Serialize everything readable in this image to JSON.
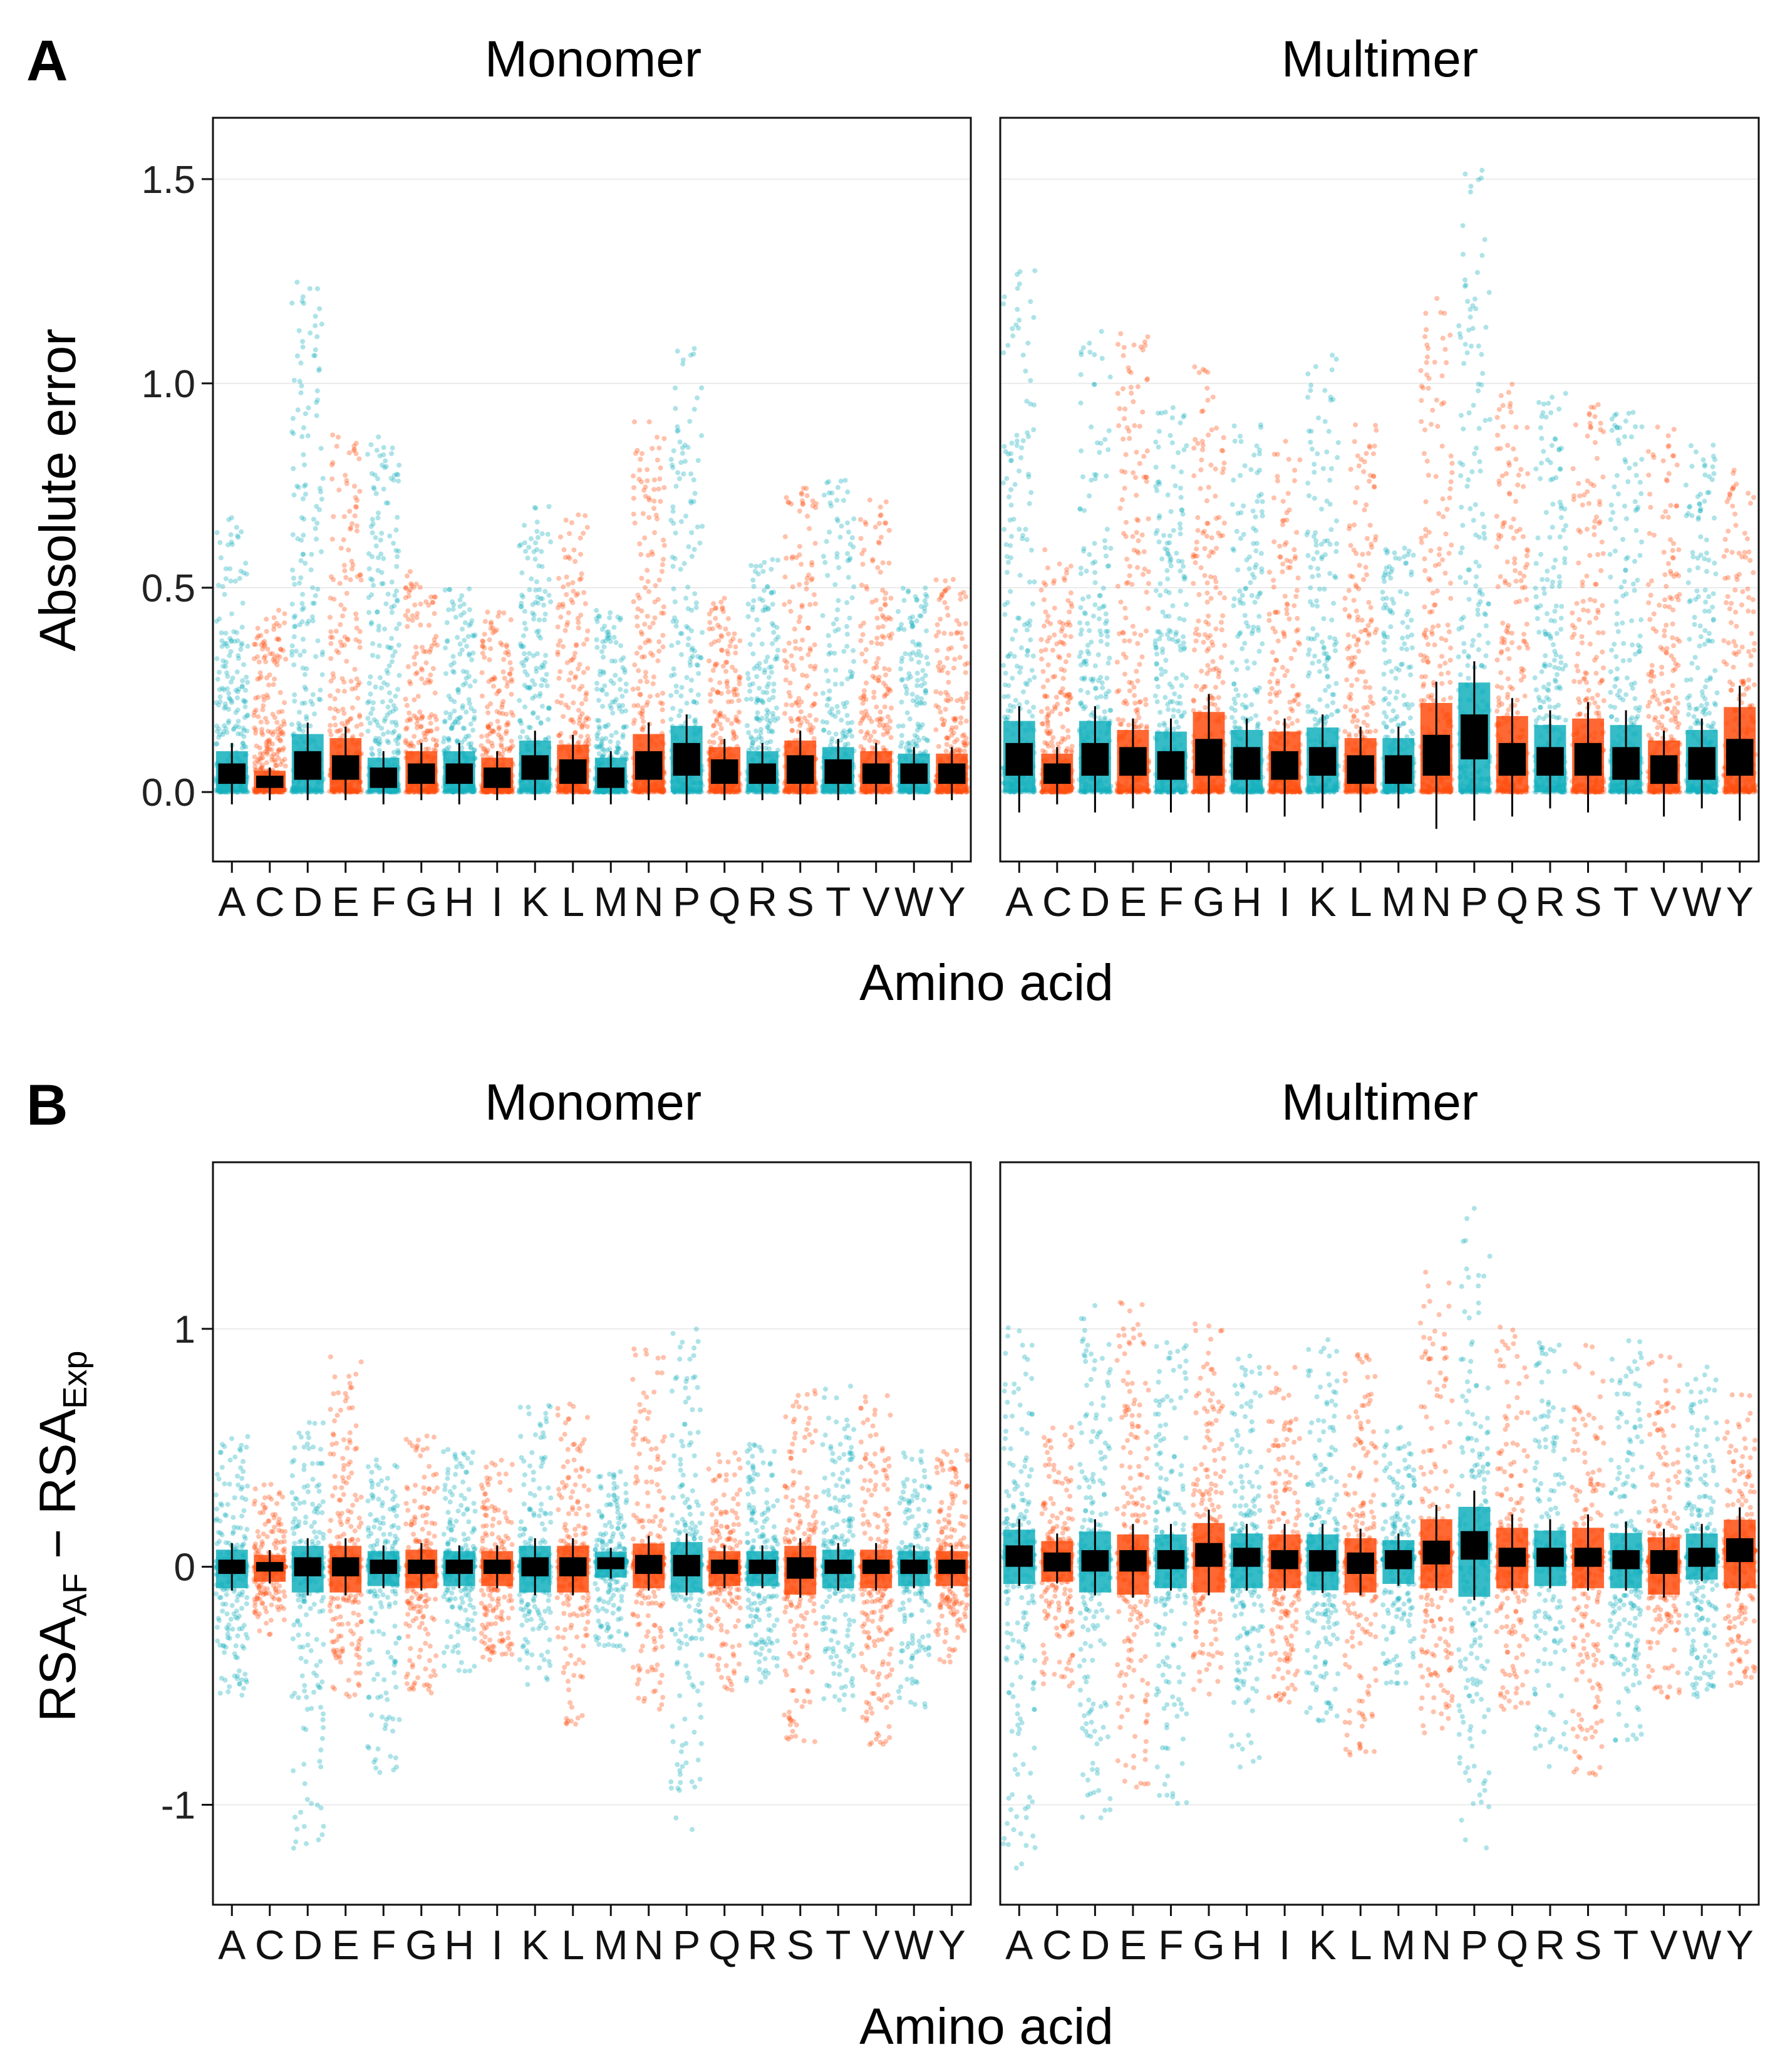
{
  "colors": {
    "teal": "#13B0BD",
    "orange": "#FF4E0E",
    "box": "#000000",
    "grid": "#EBEBEB",
    "frame": "#111111"
  },
  "chart_data": [
    {
      "panel_label": "A",
      "type": "box+jitter",
      "ylabel": "Absolute error",
      "xlabel": "Amino acid",
      "ylim": [
        -0.17,
        1.65
      ],
      "yticks": [
        0.0,
        0.5,
        1.0,
        1.5
      ],
      "ytick_labels": [
        "0.0",
        "0.5",
        "1.0",
        "1.5"
      ],
      "categories": [
        "A",
        "C",
        "D",
        "E",
        "F",
        "G",
        "H",
        "I",
        "K",
        "L",
        "M",
        "N",
        "P",
        "Q",
        "R",
        "S",
        "T",
        "V",
        "W",
        "Y"
      ],
      "category_colors": [
        "teal",
        "orange",
        "teal",
        "orange",
        "teal",
        "orange",
        "teal",
        "orange",
        "teal",
        "orange",
        "teal",
        "orange",
        "teal",
        "orange",
        "teal",
        "orange",
        "teal",
        "orange",
        "teal",
        "orange"
      ],
      "facets": [
        {
          "title": "Monomer",
          "median": [
            0.04,
            0.02,
            0.07,
            0.05,
            0.03,
            0.04,
            0.04,
            0.03,
            0.06,
            0.04,
            0.03,
            0.07,
            0.08,
            0.04,
            0.04,
            0.05,
            0.04,
            0.04,
            0.04,
            0.04
          ],
          "q1": [
            0.02,
            0.01,
            0.03,
            0.03,
            0.01,
            0.02,
            0.02,
            0.01,
            0.03,
            0.02,
            0.01,
            0.03,
            0.04,
            0.02,
            0.02,
            0.02,
            0.02,
            0.02,
            0.02,
            0.02
          ],
          "q3": [
            0.07,
            0.04,
            0.1,
            0.09,
            0.06,
            0.07,
            0.07,
            0.06,
            0.09,
            0.08,
            0.06,
            0.1,
            0.12,
            0.08,
            0.07,
            0.09,
            0.08,
            0.07,
            0.07,
            0.07
          ],
          "whisker_low": [
            -0.03,
            -0.02,
            -0.02,
            -0.02,
            -0.03,
            -0.02,
            -0.03,
            -0.02,
            -0.02,
            -0.03,
            -0.03,
            -0.02,
            -0.03,
            -0.02,
            -0.02,
            -0.03,
            -0.02,
            -0.03,
            -0.02,
            -0.02
          ],
          "whisker_high": [
            0.12,
            0.06,
            0.17,
            0.16,
            0.1,
            0.12,
            0.12,
            0.1,
            0.15,
            0.14,
            0.1,
            0.17,
            0.19,
            0.13,
            0.12,
            0.15,
            0.13,
            0.12,
            0.11,
            0.11
          ],
          "point_max": [
            0.68,
            0.45,
            1.25,
            0.9,
            0.88,
            0.54,
            0.5,
            0.45,
            0.7,
            0.7,
            0.45,
            0.93,
            1.12,
            0.48,
            0.57,
            0.75,
            0.78,
            0.72,
            0.5,
            0.53
          ]
        },
        {
          "title": "Multimer",
          "median": [
            0.08,
            0.04,
            0.08,
            0.07,
            0.06,
            0.09,
            0.07,
            0.06,
            0.07,
            0.05,
            0.05,
            0.09,
            0.14,
            0.08,
            0.07,
            0.08,
            0.07,
            0.05,
            0.07,
            0.09
          ],
          "q1": [
            0.04,
            0.02,
            0.04,
            0.04,
            0.03,
            0.04,
            0.03,
            0.03,
            0.04,
            0.02,
            0.02,
            0.04,
            0.08,
            0.04,
            0.04,
            0.04,
            0.03,
            0.02,
            0.03,
            0.04
          ],
          "q3": [
            0.12,
            0.07,
            0.12,
            0.11,
            0.1,
            0.13,
            0.11,
            0.1,
            0.11,
            0.09,
            0.09,
            0.14,
            0.19,
            0.12,
            0.11,
            0.12,
            0.11,
            0.09,
            0.11,
            0.13
          ],
          "whisker_low": [
            -0.05,
            -0.03,
            -0.05,
            -0.04,
            -0.05,
            -0.05,
            -0.05,
            -0.06,
            -0.04,
            -0.05,
            -0.04,
            -0.09,
            -0.07,
            -0.06,
            -0.04,
            -0.05,
            -0.03,
            -0.06,
            -0.04,
            -0.07
          ],
          "whisker_high": [
            0.21,
            0.11,
            0.21,
            0.18,
            0.18,
            0.24,
            0.18,
            0.18,
            0.19,
            0.16,
            0.16,
            0.27,
            0.32,
            0.23,
            0.2,
            0.22,
            0.2,
            0.15,
            0.18,
            0.26
          ],
          "point_max": [
            1.28,
            0.6,
            1.14,
            1.13,
            0.95,
            1.05,
            0.9,
            0.86,
            1.07,
            0.9,
            0.6,
            1.24,
            1.57,
            1.01,
            0.98,
            0.95,
            0.95,
            0.9,
            0.85,
            0.8
          ]
        }
      ]
    },
    {
      "panel_label": "B",
      "type": "box+jitter",
      "ylabel": "RSA",
      "ylabel_parts": {
        "a": "RSA",
        "a_sub": "AF",
        "minus": " − ",
        "b": "RSA",
        "b_sub": "Exp"
      },
      "xlabel": "Amino acid",
      "ylim": [
        -1.42,
        1.7
      ],
      "yticks": [
        -1,
        0,
        1
      ],
      "ytick_labels": [
        "-1",
        "0",
        "1"
      ],
      "categories": [
        "A",
        "C",
        "D",
        "E",
        "F",
        "G",
        "H",
        "I",
        "K",
        "L",
        "M",
        "N",
        "P",
        "Q",
        "R",
        "S",
        "T",
        "V",
        "W",
        "Y"
      ],
      "category_colors": [
        "teal",
        "orange",
        "teal",
        "orange",
        "teal",
        "orange",
        "teal",
        "orange",
        "teal",
        "orange",
        "teal",
        "orange",
        "teal",
        "orange",
        "teal",
        "orange",
        "teal",
        "orange",
        "teal",
        "orange"
      ],
      "facets": [
        {
          "title": "Monomer",
          "median": [
            0.0,
            0.0,
            0.0,
            0.0,
            0.0,
            0.0,
            0.0,
            0.0,
            0.0,
            0.0,
            0.02,
            0.01,
            0.01,
            0.0,
            0.0,
            -0.01,
            0.0,
            0.0,
            0.0,
            0.0
          ],
          "q1": [
            -0.03,
            -0.02,
            -0.04,
            -0.04,
            -0.03,
            -0.03,
            -0.03,
            -0.03,
            -0.04,
            -0.04,
            -0.01,
            -0.03,
            -0.04,
            -0.03,
            -0.03,
            -0.05,
            -0.03,
            -0.03,
            -0.03,
            -0.03
          ],
          "q3": [
            0.03,
            0.02,
            0.04,
            0.04,
            0.03,
            0.03,
            0.03,
            0.03,
            0.04,
            0.04,
            0.04,
            0.05,
            0.05,
            0.03,
            0.03,
            0.04,
            0.03,
            0.03,
            0.03,
            0.03
          ],
          "whisker_low": [
            -0.1,
            -0.07,
            -0.12,
            -0.12,
            -0.09,
            -0.1,
            -0.09,
            -0.09,
            -0.12,
            -0.12,
            -0.05,
            -0.1,
            -0.12,
            -0.09,
            -0.09,
            -0.13,
            -0.1,
            -0.1,
            -0.09,
            -0.09
          ],
          "whisker_high": [
            0.1,
            0.07,
            0.12,
            0.12,
            0.09,
            0.1,
            0.09,
            0.09,
            0.12,
            0.12,
            0.08,
            0.13,
            0.14,
            0.09,
            0.09,
            0.12,
            0.1,
            0.1,
            0.09,
            0.09
          ],
          "point_min": [
            -0.55,
            -0.3,
            -1.25,
            -0.55,
            -0.88,
            -0.55,
            -0.45,
            -0.4,
            -0.5,
            -0.7,
            -0.35,
            -0.6,
            -1.12,
            -0.55,
            -0.5,
            -0.75,
            -0.6,
            -0.75,
            -0.6,
            -0.4
          ],
          "point_max": [
            0.55,
            0.35,
            0.62,
            0.9,
            0.45,
            0.55,
            0.5,
            0.45,
            0.7,
            0.7,
            0.4,
            0.93,
            1.0,
            0.48,
            0.55,
            0.75,
            0.78,
            0.72,
            0.5,
            0.5
          ]
        },
        {
          "title": "Multimer",
          "median": [
            0.05,
            0.02,
            0.03,
            0.02,
            0.03,
            0.05,
            0.04,
            0.03,
            0.02,
            0.02,
            0.03,
            0.06,
            0.09,
            0.04,
            0.04,
            0.04,
            0.03,
            0.02,
            0.04,
            0.07
          ],
          "q1": [
            0.0,
            -0.02,
            -0.02,
            -0.02,
            -0.01,
            0.0,
            0.0,
            -0.01,
            -0.02,
            -0.03,
            -0.01,
            0.01,
            0.03,
            0.0,
            0.0,
            0.0,
            -0.01,
            -0.03,
            0.0,
            0.02
          ],
          "q3": [
            0.09,
            0.06,
            0.07,
            0.07,
            0.07,
            0.1,
            0.08,
            0.07,
            0.07,
            0.06,
            0.07,
            0.11,
            0.15,
            0.08,
            0.08,
            0.08,
            0.07,
            0.07,
            0.08,
            0.12
          ],
          "whisker_low": [
            -0.08,
            -0.07,
            -0.12,
            -0.13,
            -0.1,
            -0.12,
            -0.1,
            -0.1,
            -0.11,
            -0.12,
            -0.08,
            -0.1,
            -0.14,
            -0.1,
            -0.09,
            -0.1,
            -0.1,
            -0.13,
            -0.06,
            -0.1
          ],
          "whisker_high": [
            0.2,
            0.14,
            0.2,
            0.18,
            0.18,
            0.24,
            0.18,
            0.18,
            0.18,
            0.16,
            0.14,
            0.26,
            0.32,
            0.22,
            0.2,
            0.22,
            0.19,
            0.16,
            0.18,
            0.25
          ],
          "point_min": [
            -1.28,
            -0.55,
            -1.12,
            -0.95,
            -1.02,
            -0.55,
            -0.85,
            -0.6,
            -0.65,
            -0.8,
            -0.5,
            -0.7,
            -1.2,
            -0.6,
            -0.85,
            -0.9,
            -0.75,
            -0.55,
            -0.55,
            -0.5
          ],
          "point_max": [
            1.02,
            0.6,
            1.13,
            1.12,
            0.95,
            1.05,
            0.9,
            0.86,
            1.07,
            0.9,
            0.6,
            1.24,
            1.58,
            1.01,
            0.98,
            0.95,
            0.95,
            0.9,
            0.85,
            0.75
          ]
        }
      ]
    }
  ]
}
